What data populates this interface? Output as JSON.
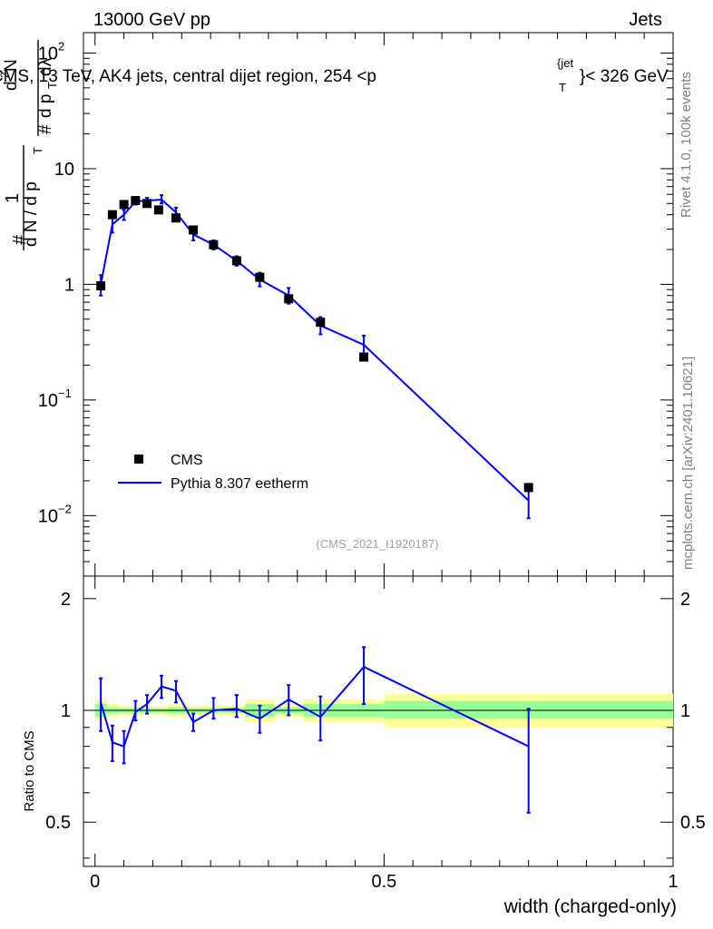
{
  "header": {
    "left": "13000 GeV pp",
    "right": "Jets"
  },
  "side_labels": {
    "rivet": "Rivet 4.1.0,  100k events",
    "mcplots": "mcplots.cern.ch [arXiv:2401.10621]"
  },
  "main_ylabel": {
    "hash": "#",
    "one": "1",
    "dN": "d N / d p",
    "dN_sub": "T",
    "hash2": "#",
    "d2N": "d",
    "d2N_sup": "2",
    "d2N_tail": "N",
    "dpT_dlam": "d p",
    "dpT_sub": "T",
    "dlam": " dλ"
  },
  "colors": {
    "mc": "#0000ff",
    "band_outer": "#ffff99",
    "band_inner": "#99ff99",
    "data": "#000000",
    "watermark": "#a0a0a0"
  },
  "chart_data": [
    {
      "type": "scatter",
      "panel": "main",
      "title": "CMS, 13 TeV, AK4 jets, central dijet region, 254 <p",
      "title_sub": "T",
      "title_sup": "{jet",
      "title_tail": "}< 326 GeV",
      "yscale": "log",
      "xlim": [
        -0.02,
        1.0
      ],
      "ylim": [
        0.003,
        150
      ],
      "y_ticks": [
        {
          "value": 100,
          "base": "10",
          "exp": "2"
        },
        {
          "value": 10,
          "base": "10",
          "exp": ""
        },
        {
          "value": 1,
          "base": "1",
          "exp": ""
        },
        {
          "value": 0.1,
          "base": "10",
          "exp": "−1"
        },
        {
          "value": 0.01,
          "base": "10",
          "exp": "−2"
        }
      ],
      "legend_position": "lower-left",
      "watermark": "(CMS_2021_I1920187)",
      "series": [
        {
          "name": "CMS",
          "kind": "markers",
          "x": [
            0.01,
            0.03,
            0.05,
            0.07,
            0.09,
            0.11,
            0.14,
            0.17,
            0.205,
            0.245,
            0.285,
            0.335,
            0.39,
            0.465,
            0.75
          ],
          "y": [
            0.97,
            4.0,
            4.9,
            5.3,
            5.0,
            4.4,
            3.75,
            2.95,
            2.2,
            1.6,
            1.15,
            0.75,
            0.47,
            0.235,
            0.0175
          ]
        },
        {
          "name": "Pythia 8.307 eetherm",
          "kind": "line",
          "x": [
            0.01,
            0.03,
            0.05,
            0.07,
            0.09,
            0.115,
            0.14,
            0.17,
            0.205,
            0.245,
            0.285,
            0.335,
            0.39,
            0.465,
            0.75
          ],
          "y": [
            1.0,
            3.3,
            4.0,
            5.2,
            5.3,
            5.4,
            4.2,
            2.7,
            2.2,
            1.6,
            1.1,
            0.8,
            0.44,
            0.3,
            0.0135
          ],
          "y_low": [
            0.8,
            2.8,
            3.6,
            4.9,
            5.0,
            5.0,
            3.8,
            2.4,
            2.0,
            1.45,
            0.96,
            0.68,
            0.37,
            0.24,
            0.0095
          ],
          "y_high": [
            1.2,
            3.8,
            4.4,
            5.5,
            5.6,
            5.9,
            4.6,
            3.0,
            2.4,
            1.75,
            1.26,
            0.93,
            0.52,
            0.36,
            0.0185
          ]
        }
      ]
    },
    {
      "type": "line",
      "panel": "ratio",
      "ylabel": "Ratio to CMS",
      "xlabel": "width (charged-only)",
      "xlim": [
        -0.02,
        1.0
      ],
      "ylim": [
        0.38,
        2.3
      ],
      "x_ticks": [
        "0",
        "0.5",
        "1"
      ],
      "y_ticks": [
        "0.5",
        "1",
        "2"
      ],
      "y_tick_values": [
        0.5,
        1,
        2
      ],
      "x_tick_values": [
        0,
        0.5,
        1
      ],
      "reference": 1,
      "uncertainty_bands": [
        {
          "x": [
            0.0,
            0.02
          ],
          "outer": [
            0.94,
            1.07
          ],
          "inner": [
            0.96,
            1.04
          ]
        },
        {
          "x": [
            0.02,
            0.04
          ],
          "outer": [
            0.96,
            1.04
          ],
          "inner": [
            0.98,
            1.02
          ]
        },
        {
          "x": [
            0.04,
            0.06
          ],
          "outer": [
            0.97,
            1.03
          ],
          "inner": [
            0.985,
            1.015
          ]
        },
        {
          "x": [
            0.06,
            0.08
          ],
          "outer": [
            0.97,
            1.03
          ],
          "inner": [
            0.985,
            1.015
          ]
        },
        {
          "x": [
            0.08,
            0.1
          ],
          "outer": [
            0.97,
            1.03
          ],
          "inner": [
            0.985,
            1.015
          ]
        },
        {
          "x": [
            0.1,
            0.125
          ],
          "outer": [
            0.975,
            1.025
          ],
          "inner": [
            0.988,
            1.012
          ]
        },
        {
          "x": [
            0.125,
            0.155
          ],
          "outer": [
            0.96,
            1.04
          ],
          "inner": [
            0.98,
            1.02
          ]
        },
        {
          "x": [
            0.155,
            0.19
          ],
          "outer": [
            0.97,
            1.03
          ],
          "inner": [
            0.985,
            1.015
          ]
        },
        {
          "x": [
            0.19,
            0.225
          ],
          "outer": [
            0.97,
            1.03
          ],
          "inner": [
            0.985,
            1.015
          ]
        },
        {
          "x": [
            0.225,
            0.26
          ],
          "outer": [
            0.97,
            1.03
          ],
          "inner": [
            0.985,
            1.015
          ]
        },
        {
          "x": [
            0.26,
            0.31
          ],
          "outer": [
            0.93,
            1.07
          ],
          "inner": [
            0.96,
            1.04
          ]
        },
        {
          "x": [
            0.31,
            0.36
          ],
          "outer": [
            0.96,
            1.04
          ],
          "inner": [
            0.98,
            1.02
          ]
        },
        {
          "x": [
            0.36,
            0.43
          ],
          "outer": [
            0.93,
            1.07
          ],
          "inner": [
            0.96,
            1.04
          ]
        },
        {
          "x": [
            0.43,
            0.5
          ],
          "outer": [
            0.93,
            1.07
          ],
          "inner": [
            0.96,
            1.04
          ]
        },
        {
          "x": [
            0.5,
            1.0
          ],
          "outer": [
            0.9,
            1.11
          ],
          "inner": [
            0.95,
            1.06
          ]
        }
      ],
      "series": [
        {
          "name": "Pythia 8.307 eetherm / CMS",
          "x": [
            0.01,
            0.03,
            0.05,
            0.07,
            0.09,
            0.115,
            0.14,
            0.17,
            0.205,
            0.245,
            0.285,
            0.335,
            0.39,
            0.465,
            0.75
          ],
          "y": [
            1.05,
            0.82,
            0.8,
            0.99,
            1.04,
            1.16,
            1.13,
            0.93,
            1.0,
            1.01,
            0.95,
            1.07,
            0.96,
            1.31,
            0.8
          ],
          "y_low": [
            0.88,
            0.73,
            0.72,
            0.94,
            0.98,
            1.08,
            1.05,
            0.88,
            0.95,
            0.96,
            0.87,
            0.97,
            0.83,
            1.04,
            0.53
          ],
          "y_high": [
            1.22,
            0.91,
            0.88,
            1.06,
            1.1,
            1.24,
            1.2,
            0.98,
            1.08,
            1.1,
            1.03,
            1.17,
            1.09,
            1.48,
            1.01
          ]
        }
      ]
    }
  ]
}
